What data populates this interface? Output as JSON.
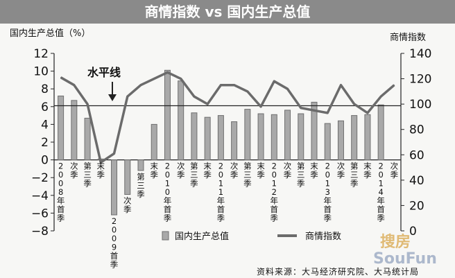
{
  "chart_data": {
    "type": "bar-line",
    "title": "商情指数 vs 国内生产总值",
    "ylabel_left": "国内生产总值（%）",
    "ylabel_right": "商情指数",
    "ylim_left": [
      -8,
      12
    ],
    "ylim_right": [
      0,
      140
    ],
    "yticks_left": [
      "12",
      "10",
      "8",
      "6",
      "4",
      "2",
      "0",
      "−2",
      "−4",
      "−6",
      "−8"
    ],
    "yticks_right": [
      "140",
      "120",
      "100",
      "80",
      "60",
      "40",
      "20",
      "0"
    ],
    "categories": [
      {
        "label": "2008年首季",
        "below": true
      },
      {
        "label": "次季",
        "below": true
      },
      {
        "label": "第三季",
        "below": true
      },
      {
        "label": "末季",
        "below": true
      },
      {
        "label": "2009首季",
        "below": false
      },
      {
        "label": "次季",
        "below": false
      },
      {
        "label": "第三季",
        "below": false
      },
      {
        "label": "末季",
        "below": true
      },
      {
        "label": "2010年首季",
        "below": true
      },
      {
        "label": "次季",
        "below": true
      },
      {
        "label": "第三季",
        "below": true
      },
      {
        "label": "末季",
        "below": true
      },
      {
        "label": "2011年首季",
        "below": true
      },
      {
        "label": "次季",
        "below": true
      },
      {
        "label": "第三季",
        "below": true
      },
      {
        "label": "末季",
        "below": true
      },
      {
        "label": "2012年首季",
        "below": true
      },
      {
        "label": "次季",
        "below": true
      },
      {
        "label": "第三季",
        "below": true
      },
      {
        "label": "末季",
        "below": true
      },
      {
        "label": "2013年首季",
        "below": true
      },
      {
        "label": "次季",
        "below": true
      },
      {
        "label": "第三季",
        "below": true
      },
      {
        "label": "末季",
        "below": true
      },
      {
        "label": "2014年首季",
        "below": true
      },
      {
        "label": "次季",
        "below": true
      }
    ],
    "series": [
      {
        "name": "国内生产总值",
        "type": "bar",
        "axis": "left",
        "values": [
          7.2,
          6.7,
          4.7,
          0.1,
          -6.2,
          -3.9,
          -1.2,
          4.0,
          10.1,
          8.9,
          5.3,
          4.8,
          5.0,
          4.3,
          5.7,
          5.2,
          5.1,
          5.6,
          5.2,
          6.5,
          4.1,
          4.4,
          5.0,
          5.1,
          6.2,
          null
        ]
      },
      {
        "name": "商情指数",
        "type": "line",
        "axis": "right",
        "values": [
          121,
          115,
          100,
          54,
          61,
          106,
          115,
          120,
          125,
          120,
          106,
          100,
          115,
          115,
          110,
          98,
          118,
          112,
          97,
          95,
          93,
          115,
          100,
          93,
          106,
          115
        ]
      }
    ],
    "reference_line": {
      "label": "水平线",
      "value": 6.1,
      "axis": "left"
    },
    "legend": {
      "position": "bottom",
      "items": [
        "国内生产总值",
        "商情指数"
      ]
    },
    "annotation": "水平线"
  },
  "source": "资料来源：大马经济研究院、大马统计局",
  "watermark": {
    "top": "搜房",
    "bottom": "SouFun"
  },
  "colors": {
    "bar": "#a9a9a9",
    "bar_stroke": "#6f6f6f",
    "line": "#6b6b6b",
    "title_bg": "#8a8a8a",
    "ref_line": "#222222"
  }
}
